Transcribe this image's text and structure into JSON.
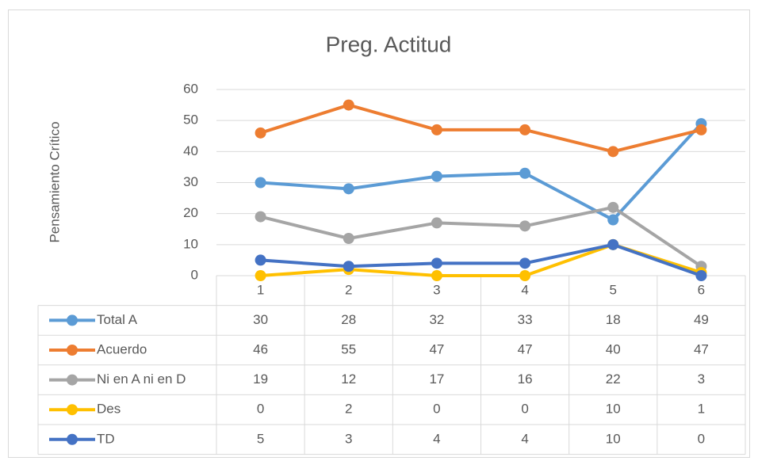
{
  "chart_data": {
    "type": "line",
    "title": "Preg. Actitud",
    "y_label": "Pensamiento Crítico",
    "categories": [
      "1",
      "2",
      "3",
      "4",
      "5",
      "6"
    ],
    "series": [
      {
        "name": "Total A",
        "color": "#5b9bd5",
        "values": [
          30,
          28,
          32,
          33,
          18,
          49
        ]
      },
      {
        "name": "Acuerdo",
        "color": "#ed7d31",
        "values": [
          46,
          55,
          47,
          47,
          40,
          47
        ]
      },
      {
        "name": "Ni en A ni en D",
        "color": "#a5a5a5",
        "values": [
          19,
          12,
          17,
          16,
          22,
          3
        ]
      },
      {
        "name": "Des",
        "color": "#ffc000",
        "values": [
          0,
          2,
          0,
          0,
          10,
          1
        ]
      },
      {
        "name": "TD",
        "color": "#4472c4",
        "values": [
          5,
          3,
          4,
          4,
          10,
          0
        ]
      }
    ],
    "ylim": [
      0,
      60
    ],
    "yticks": [
      0,
      10,
      20,
      30,
      40,
      50,
      60
    ],
    "grid": true,
    "data_table": true
  }
}
